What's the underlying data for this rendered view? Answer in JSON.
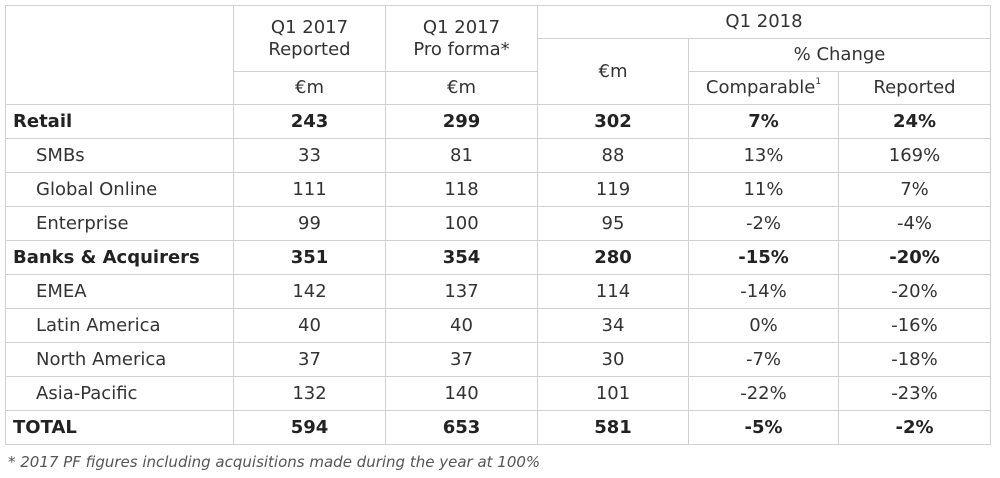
{
  "table": {
    "header": {
      "q1_2017_reported": [
        "Q1 2017",
        "Reported"
      ],
      "q1_2017_pro_forma": [
        "Q1 2017",
        "Pro forma*"
      ],
      "q1_2018": "Q1 2018",
      "pct_change": "% Change",
      "comparable": "Comparable",
      "comparable_note": "1",
      "reported": "Reported",
      "unit": "€m"
    },
    "groups": [
      {
        "name": "Retail",
        "values": [
          "243",
          "299",
          "302",
          "7%",
          "24%"
        ],
        "children": [
          {
            "name": "SMBs",
            "values": [
              "33",
              "81",
              "88",
              "13%",
              "169%"
            ]
          },
          {
            "name": "Global Online",
            "values": [
              "111",
              "118",
              "119",
              "11%",
              "7%"
            ]
          },
          {
            "name": "Enterprise",
            "values": [
              "99",
              "100",
              "95",
              "-2%",
              "-4%"
            ]
          }
        ]
      },
      {
        "name": "Banks & Acquirers",
        "values": [
          "351",
          "354",
          "280",
          "-15%",
          "-20%"
        ],
        "children": [
          {
            "name": "EMEA",
            "values": [
              "142",
              "137",
              "114",
              "-14%",
              "-20%"
            ]
          },
          {
            "name": "Latin America",
            "values": [
              "40",
              "40",
              "34",
              "0%",
              "-16%"
            ]
          },
          {
            "name": "North America",
            "values": [
              "37",
              "37",
              "30",
              "-7%",
              "-18%"
            ]
          },
          {
            "name": "Asia-Pacific",
            "values": [
              "132",
              "140",
              "101",
              "-22%",
              "-23%"
            ]
          }
        ]
      }
    ],
    "total": {
      "name": "TOTAL",
      "values": [
        "594",
        "653",
        "581",
        "-5%",
        "-2%"
      ]
    },
    "footnote": "* 2017 PF figures including acquisitions made during the year at 100%"
  }
}
